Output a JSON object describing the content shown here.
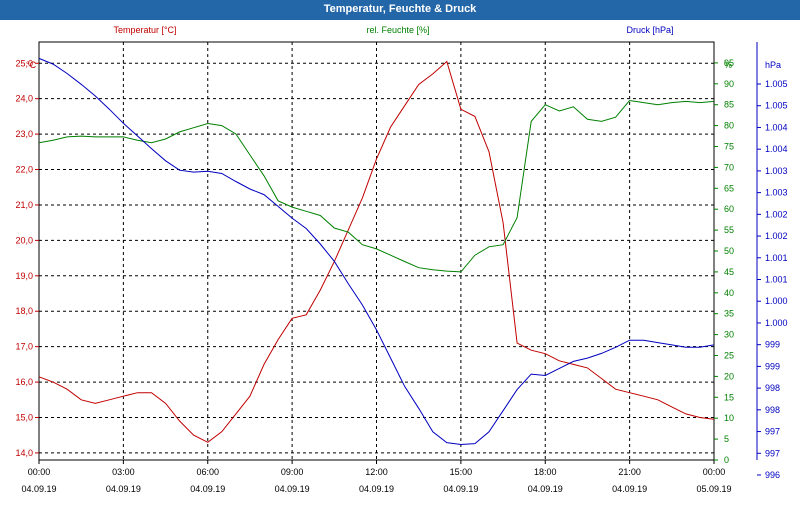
{
  "title": "Temperatur, Feuchte & Druck",
  "chart_data": {
    "type": "line",
    "title": "Temperatur, Feuchte & Druck",
    "x_ticks": [
      {
        "time": "00:00",
        "date": "04.09.19"
      },
      {
        "time": "03:00",
        "date": "04.09.19"
      },
      {
        "time": "06:00",
        "date": "04.09.19"
      },
      {
        "time": "09:00",
        "date": "04.09.19"
      },
      {
        "time": "12:00",
        "date": "04.09.19"
      },
      {
        "time": "15:00",
        "date": "04.09.19"
      },
      {
        "time": "18:00",
        "date": "04.09.19"
      },
      {
        "time": "21:00",
        "date": "04.09.19"
      },
      {
        "time": "00:00",
        "date": "05.09.19"
      }
    ],
    "x_hours": [
      0,
      0.5,
      1,
      1.5,
      2,
      2.5,
      3,
      3.5,
      4,
      4.5,
      5,
      5.5,
      6,
      6.5,
      7,
      7.5,
      8,
      8.5,
      9,
      9.5,
      10,
      10.5,
      11,
      11.5,
      12,
      12.5,
      13,
      13.5,
      14,
      14.5,
      15,
      15.5,
      16,
      16.5,
      17,
      17.5,
      18,
      18.5,
      19,
      19.5,
      20,
      20.5,
      21,
      21.5,
      22,
      22.5,
      23,
      23.5,
      24
    ],
    "xlim": [
      0,
      24
    ],
    "grid": true,
    "axes": {
      "temperature": {
        "label": "Temperatur [°C]",
        "unit": "°C",
        "color": "#c00000",
        "range": [
          13.8,
          25.6
        ],
        "ticks": [
          "14,0",
          "15,0",
          "16,0",
          "17,0",
          "18,0",
          "19,0",
          "20,0",
          "21,0",
          "22,0",
          "23,0",
          "24,0",
          "25,0"
        ]
      },
      "humidity": {
        "label": "rel. Feuchte [%]",
        "unit": "%",
        "color": "#008000",
        "range": [
          0,
          100
        ],
        "ticks": [
          "0",
          "5",
          "10",
          "15",
          "20",
          "25",
          "30",
          "35",
          "40",
          "45",
          "50",
          "55",
          "60",
          "65",
          "70",
          "75",
          "80",
          "85",
          "90",
          "95"
        ]
      },
      "pressure": {
        "label": "Druck [hPa]",
        "unit": "hPa",
        "color": "#0000c0",
        "range": [
          996.45,
          1005.35
        ],
        "ticks": [
          "996",
          "997",
          "997",
          "998",
          "998",
          "999",
          "999",
          "1.000",
          "1.000",
          "1.001",
          "1.001",
          "1.002",
          "1.002",
          "1.003",
          "1.003",
          "1.004",
          "1.004",
          "1.005",
          "1.005"
        ]
      }
    },
    "series": [
      {
        "name": "Temperatur [°C]",
        "axis": "temperature",
        "color": "#c00000",
        "values": [
          16.15,
          16.0,
          15.8,
          15.5,
          15.4,
          15.5,
          15.6,
          15.7,
          15.7,
          15.4,
          14.9,
          14.5,
          14.3,
          14.6,
          15.1,
          15.6,
          16.5,
          17.2,
          17.8,
          17.9,
          18.6,
          19.4,
          20.3,
          21.2,
          22.3,
          23.2,
          23.8,
          24.4,
          24.7,
          25.05,
          23.7,
          23.5,
          22.5,
          20.5,
          17.1,
          16.9,
          16.8,
          16.6,
          16.5,
          16.4,
          16.1,
          15.8,
          15.7,
          15.6,
          15.5,
          15.3,
          15.1,
          15.0,
          14.95
        ]
      },
      {
        "name": "rel. Feuchte [%]",
        "axis": "humidity",
        "color": "#008000",
        "values": [
          75.9,
          76.5,
          77.3,
          77.5,
          77.3,
          77.3,
          77.3,
          76.5,
          75.9,
          76.8,
          78.5,
          79.5,
          80.5,
          80.0,
          78.0,
          73.0,
          68.0,
          62.0,
          60.5,
          59.5,
          58.5,
          55.5,
          54.5,
          51.5,
          50.5,
          49.0,
          47.5,
          46.0,
          45.5,
          45.2,
          45.0,
          49.0,
          51.0,
          51.5,
          58.0,
          81.0,
          85.0,
          83.5,
          84.5,
          81.5,
          81.0,
          82.0,
          86.0,
          85.5,
          85.0,
          85.5,
          85.8,
          85.5,
          85.8
        ]
      },
      {
        "name": "Druck [hPa]",
        "axis": "pressure",
        "color": "#0000c0",
        "values": [
          1005.0,
          1004.88,
          1004.68,
          1004.45,
          1004.2,
          1003.92,
          1003.62,
          1003.35,
          1003.08,
          1002.82,
          1002.62,
          1002.58,
          1002.6,
          1002.55,
          1002.38,
          1002.22,
          1002.1,
          1001.85,
          1001.6,
          1001.38,
          1001.05,
          1000.68,
          1000.2,
          999.75,
          999.22,
          998.62,
          998.02,
          997.55,
          997.05,
          996.82,
          996.78,
          996.8,
          997.05,
          997.5,
          997.95,
          998.28,
          998.25,
          998.4,
          998.55,
          998.62,
          998.72,
          998.85,
          999.0,
          999.0,
          998.95,
          998.9,
          998.85,
          998.85,
          998.9
        ]
      }
    ]
  }
}
